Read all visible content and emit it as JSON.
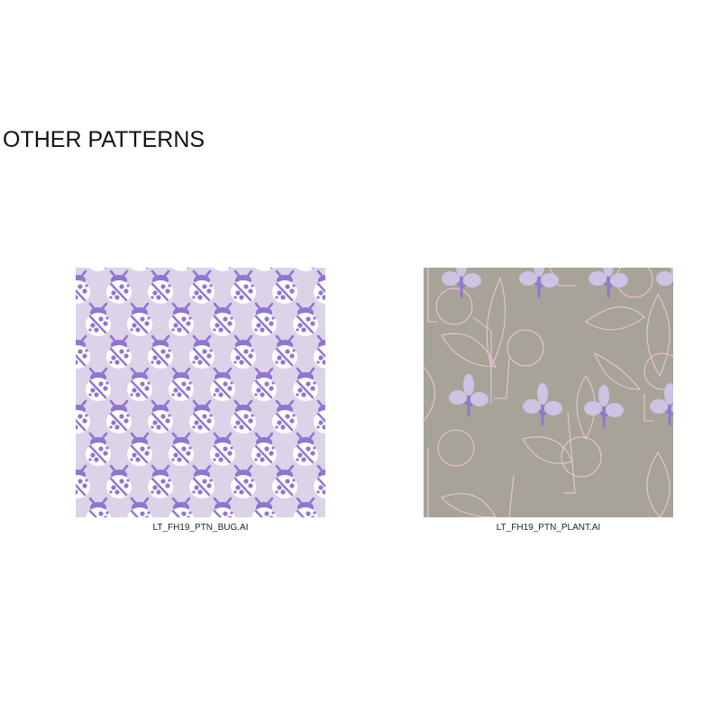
{
  "section": {
    "title": "OTHER PATTERNS"
  },
  "patterns": [
    {
      "filename": "LT_FH19_PTN_BUG.AI",
      "motif": "ladybug-icon",
      "colors": {
        "background": "#dcd3e8",
        "motif": "#8f76d2",
        "shell": "#ffffff"
      }
    },
    {
      "filename": "LT_FH19_PTN_PLANT.AI",
      "motif": "plant-icon",
      "colors": {
        "background": "#a8a398",
        "leaf": "#cdc3e3",
        "stem": "#8f76d2",
        "outline": "#f0c8dc"
      }
    }
  ]
}
